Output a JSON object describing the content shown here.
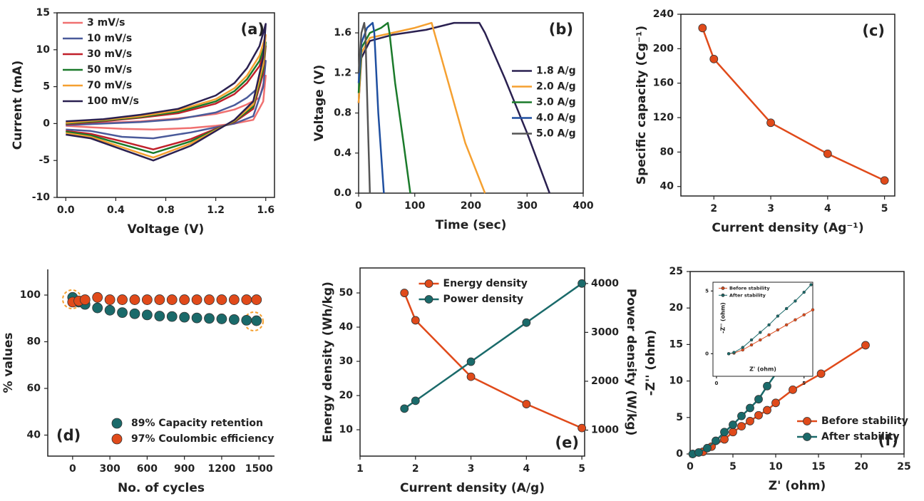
{
  "chart_data": [
    {
      "type": "line",
      "title": "(a)",
      "xlabel": "Voltage (V)",
      "ylabel": "Current (mA)",
      "legend": "upper left",
      "markers": false,
      "xlim": [
        -0.07,
        1.67
      ],
      "xticks": [
        {
          "value": 0,
          "label": "0.0"
        },
        0.4,
        0.8,
        1.2,
        1.6
      ],
      "ylim": [
        -10,
        15
      ],
      "yticks": [
        -10,
        -5,
        0,
        5,
        10,
        15
      ],
      "series": [
        {
          "name": "3 mV/s",
          "color": "#f07070",
          "x": [
            0,
            0.3,
            0.6,
            0.9,
            1.2,
            1.35,
            1.45,
            1.55,
            1.6,
            1.58,
            1.5,
            1.35,
            1.2,
            1.0,
            0.7,
            0.45,
            0.2,
            0
          ],
          "values": [
            0,
            0.1,
            0.3,
            0.7,
            1.3,
            1.9,
            2.6,
            3.5,
            6.5,
            3,
            0.5,
            0,
            -0.3,
            -0.6,
            -0.8,
            -0.7,
            -0.5,
            -0.3
          ]
        },
        {
          "name": "10 mV/s",
          "color": "#4a5a9a",
          "x": [
            0,
            0.3,
            0.6,
            0.9,
            1.2,
            1.35,
            1.45,
            1.55,
            1.6,
            1.58,
            1.5,
            1.35,
            1.2,
            1.0,
            0.7,
            0.45,
            0.2,
            0
          ],
          "values": [
            -0.2,
            0,
            0.2,
            0.6,
            1.5,
            2.5,
            3.5,
            5,
            8.5,
            5,
            1,
            0,
            -0.5,
            -1.2,
            -2,
            -1.8,
            -1,
            -0.8
          ]
        },
        {
          "name": "30 mV/s",
          "color": "#c0202a",
          "x": [
            0,
            0.3,
            0.6,
            0.9,
            1.2,
            1.35,
            1.45,
            1.55,
            1.6,
            1.58,
            1.5,
            1.35,
            1.2,
            1.0,
            0.7,
            0.45,
            0.2,
            0
          ],
          "values": [
            -0.1,
            0.3,
            0.8,
            1.4,
            2.7,
            4.0,
            5.5,
            7.8,
            10.5,
            6.8,
            2,
            0.2,
            -0.7,
            -2.1,
            -3.5,
            -2.4,
            -1.4,
            -1
          ]
        },
        {
          "name": "50 mV/s",
          "color": "#1a7a2a",
          "x": [
            0,
            0.3,
            0.6,
            0.9,
            1.2,
            1.35,
            1.45,
            1.55,
            1.6,
            1.58,
            1.5,
            1.35,
            1.2,
            1.0,
            0.7,
            0.45,
            0.2,
            0
          ],
          "values": [
            0,
            0.4,
            0.9,
            1.6,
            3.0,
            4.4,
            6.0,
            8.5,
            11,
            7.4,
            2.3,
            0.3,
            -0.8,
            -2.4,
            -4,
            -2.8,
            -1.6,
            -1.1
          ]
        },
        {
          "name": "70 mV/s",
          "color": "#f5a030",
          "x": [
            0,
            0.3,
            0.6,
            0.9,
            1.2,
            1.35,
            1.45,
            1.55,
            1.6,
            1.58,
            1.5,
            1.35,
            1.2,
            1.0,
            0.7,
            0.45,
            0.2,
            0
          ],
          "values": [
            0.1,
            0.5,
            1.0,
            1.8,
            3.3,
            4.8,
            6.5,
            9.2,
            12,
            8,
            2.6,
            0.4,
            -0.9,
            -2.7,
            -4.6,
            -3.2,
            -1.8,
            -1.3
          ]
        },
        {
          "name": "100 mV/s",
          "color": "#2a2050",
          "x": [
            0,
            0.3,
            0.6,
            0.9,
            1.2,
            1.35,
            1.45,
            1.55,
            1.6,
            1.58,
            1.5,
            1.35,
            1.2,
            1.0,
            0.7,
            0.45,
            0.2,
            0
          ],
          "values": [
            0.3,
            0.6,
            1.2,
            2.0,
            3.8,
            5.5,
            7.5,
            10.5,
            13.5,
            9,
            3,
            0.5,
            -1,
            -3,
            -5,
            -3.5,
            -2,
            -1.5
          ]
        }
      ]
    },
    {
      "type": "line",
      "title": "(b)",
      "xlabel": "Time (sec)",
      "ylabel": "Voltage (V)",
      "legend": "center right",
      "markers": false,
      "xlim": [
        0,
        400
      ],
      "xticks": [
        0,
        100,
        200,
        300,
        400
      ],
      "ylim": [
        0,
        1.8
      ],
      "yticks": [
        {
          "value": 0,
          "label": "0.0"
        },
        0.4,
        0.8,
        1.2,
        1.6
      ],
      "series": [
        {
          "name": "1.8 A/g",
          "color": "#2a2050",
          "x": [
            0,
            5,
            20,
            60,
            120,
            170,
            215,
            225,
            260,
            300,
            340
          ],
          "values": [
            0.9,
            1.35,
            1.52,
            1.58,
            1.63,
            1.7,
            1.7,
            1.6,
            1.15,
            0.6,
            0
          ]
        },
        {
          "name": "2.0 A/g",
          "color": "#f5a030",
          "x": [
            0,
            5,
            20,
            60,
            100,
            130,
            135,
            160,
            190,
            225
          ],
          "values": [
            0.9,
            1.4,
            1.55,
            1.6,
            1.65,
            1.7,
            1.6,
            1.1,
            0.5,
            0
          ]
        },
        {
          "name": "3.0 A/g",
          "color": "#1a7a2a",
          "x": [
            0,
            5,
            20,
            40,
            52,
            55,
            65,
            80,
            92
          ],
          "values": [
            1.0,
            1.45,
            1.6,
            1.65,
            1.7,
            1.6,
            1.1,
            0.5,
            0
          ]
        },
        {
          "name": "4.0 A/g",
          "color": "#1f4fa0",
          "x": [
            0,
            5,
            15,
            25,
            28,
            35,
            45
          ],
          "values": [
            1.1,
            1.5,
            1.65,
            1.7,
            1.6,
            0.8,
            0
          ]
        },
        {
          "name": "5.0 A/g",
          "color": "#555555",
          "x": [
            0,
            5,
            10,
            12,
            16,
            20
          ],
          "values": [
            1.2,
            1.6,
            1.7,
            1.6,
            0.8,
            0
          ]
        }
      ]
    },
    {
      "type": "line",
      "title": "(c)",
      "xlabel": "Current density (Ag⁻¹)",
      "ylabel": "Specific capacity (Cg⁻¹)",
      "markers": true,
      "xlim": [
        1.42,
        5.18
      ],
      "xticks": [
        2,
        3,
        4,
        5
      ],
      "ylim": [
        29,
        240
      ],
      "yticks": [
        40,
        80,
        120,
        160,
        200,
        240
      ],
      "series": [
        {
          "color": "#e04a1a",
          "x": [
            1.8,
            2,
            3,
            4,
            5
          ],
          "values": [
            224,
            188,
            114,
            78,
            47
          ]
        }
      ]
    },
    {
      "type": "scatter",
      "title": "(d)",
      "xlabel": "No. of cycles",
      "ylabel": "% values",
      "legend": "lower right",
      "xlim": [
        -200,
        1625
      ],
      "xticks": [
        0,
        300,
        600,
        900,
        1200,
        1500
      ],
      "ylim": [
        31,
        111
      ],
      "yticks": [
        40,
        60,
        80,
        100
      ],
      "series": [
        {
          "name": "89% Capacity retention",
          "color": "#1a6a6a",
          "x": [
            0,
            50,
            100,
            200,
            300,
            400,
            500,
            600,
            700,
            800,
            900,
            1000,
            1100,
            1200,
            1300,
            1400,
            1480
          ],
          "values": [
            99,
            97,
            96,
            94.5,
            93.5,
            92.5,
            92,
            91.5,
            91,
            90.8,
            90.5,
            90.2,
            90,
            89.8,
            89.5,
            89.2,
            89
          ]
        },
        {
          "name": "97% Coulombic efficiency",
          "color": "#e04a1a",
          "x": [
            0,
            50,
            100,
            200,
            300,
            400,
            500,
            600,
            700,
            800,
            900,
            1000,
            1100,
            1200,
            1300,
            1400,
            1480
          ],
          "values": [
            97,
            97.5,
            98,
            99,
            98,
            98,
            98,
            98,
            98,
            98,
            98,
            98,
            98,
            98,
            98,
            98,
            98
          ]
        }
      ]
    },
    {
      "type": "line",
      "title": "(e)",
      "xlabel": "Current density (A/g)",
      "ylabel": "Energy density (Wh/kg)",
      "y2label": "Power density (W/kg)",
      "legend": "upper center",
      "markers": true,
      "xlim": [
        1,
        5.05
      ],
      "xticks": [
        1,
        2,
        3,
        4,
        5
      ],
      "ylim": [
        2.3,
        57.3
      ],
      "yticks": [
        10,
        20,
        30,
        40,
        50
      ],
      "y2lim": [
        468,
        4318
      ],
      "y2ticks": [
        1000,
        2000,
        3000,
        4000
      ],
      "series": [
        {
          "name": "Energy density",
          "color": "#e04a1a",
          "x": [
            1.8,
            2,
            3,
            4,
            5
          ],
          "values": [
            50,
            42,
            25.5,
            17.5,
            10.5
          ]
        },
        {
          "name": "Power density",
          "color": "#1a6a6a",
          "axis": "y2",
          "x": [
            1.8,
            2,
            3,
            4,
            5
          ],
          "values": [
            1440,
            1600,
            2400,
            3200,
            4000
          ]
        }
      ]
    },
    {
      "type": "line",
      "title": "(f)",
      "xlabel": "Z' (ohm)",
      "ylabel": "-Z'' (ohm)",
      "legend": "lower right",
      "markers": true,
      "xlim": [
        0,
        25
      ],
      "xticks": [
        0,
        5,
        10,
        15,
        20,
        25
      ],
      "ylim": [
        0,
        25
      ],
      "yticks": [
        0,
        5,
        10,
        15,
        20,
        25
      ],
      "series": [
        {
          "name": "Before stability",
          "color": "#e04a1a",
          "x": [
            0.3,
            1.5,
            2.5,
            4,
            5,
            6,
            7,
            8,
            9,
            10,
            12,
            15.3,
            20.5
          ],
          "values": [
            0,
            0.3,
            1,
            2,
            3,
            3.8,
            4.5,
            5.3,
            6,
            7,
            8.8,
            11,
            14.9
          ]
        },
        {
          "name": "After stability",
          "color": "#1a6a6a",
          "x": [
            0.3,
            1,
            2,
            3,
            4,
            5,
            6,
            7,
            8,
            9,
            10.2
          ],
          "values": [
            0,
            0.2,
            0.8,
            1.8,
            3,
            4,
            5.2,
            6.3,
            7.5,
            9.3,
            11.3
          ]
        }
      ],
      "inset": {
        "type": "line",
        "xlabel": "Z' (ohm)",
        "ylabel": "-Z'' (ohm)",
        "legend": "upper left",
        "markers": true,
        "xlim": [
          -0.2,
          5.5
        ],
        "xticks": [
          0,
          5
        ],
        "ylim": [
          -1.8,
          5.7
        ],
        "yticks": [
          0,
          5
        ],
        "series": [
          {
            "name": "Before stability",
            "color": "#e04a1a",
            "x": [
              0.7,
              1,
              1.5,
              2,
              2.5,
              3,
              3.5,
              4,
              4.5,
              5,
              5.5
            ],
            "values": [
              0,
              0.05,
              0.3,
              0.7,
              1.1,
              1.5,
              1.9,
              2.3,
              2.7,
              3.1,
              3.5
            ]
          },
          {
            "name": "After stability",
            "color": "#1a6a6a",
            "x": [
              0.7,
              1,
              1.5,
              2,
              2.5,
              3,
              3.5,
              4,
              4.5,
              5,
              5.4
            ],
            "values": [
              0,
              0.1,
              0.5,
              1.1,
              1.7,
              2.3,
              3,
              3.6,
              4.2,
              4.9,
              5.5
            ]
          }
        ]
      }
    }
  ]
}
